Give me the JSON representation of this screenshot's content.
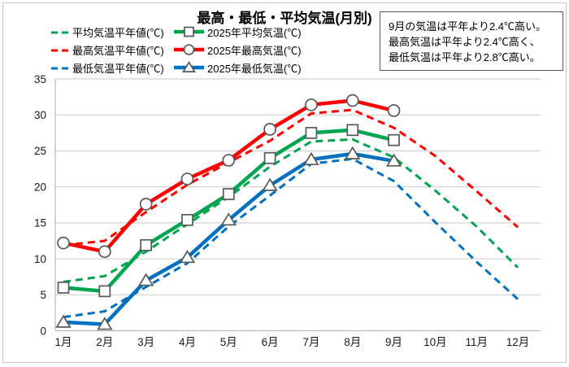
{
  "title": "最高・最低・平均気温(月別)",
  "annotation": {
    "line1": "9月の気温は平年より2.4℃高い。",
    "line2": "最高気温は平年より2.4℃高く、",
    "line3": "最低気温は平年より2.8℃高い。"
  },
  "colors": {
    "max_red": "#ff0000",
    "avg_green": "#00a550",
    "min_blue": "#0070c0",
    "marker_outline": "#595959",
    "gridline": "#c9c9c9",
    "axis_line": "#ababab",
    "frame_border": "#c6c6c6",
    "label_text": "#1a1a1a"
  },
  "chart_data": {
    "type": "line",
    "title": "最高・最低・平均気温(月別)",
    "xlabel": "",
    "ylabel": "",
    "ylim": [
      0,
      35
    ],
    "ytick_labels": [
      "0",
      "5",
      "10",
      "15",
      "20",
      "25",
      "30",
      "35"
    ],
    "grid": true,
    "legend_position": "top-left, 2 columns",
    "categories": [
      "1月",
      "2月",
      "3月",
      "4月",
      "5月",
      "6月",
      "7月",
      "8月",
      "9月",
      "10月",
      "11月",
      "12月"
    ],
    "series": [
      {
        "name": "平均気温平年値(℃)",
        "color": "#00a550",
        "style": "dashed",
        "marker": "none",
        "values": [
          6.8,
          7.6,
          11.0,
          14.8,
          18.6,
          22.8,
          26.3,
          26.6,
          24.1,
          19.5,
          14.5,
          8.8
        ]
      },
      {
        "name": "2025年平均気温(℃)",
        "color": "#00a550",
        "style": "solid",
        "marker": "square",
        "values": [
          6.0,
          5.5,
          11.9,
          15.4,
          19.0,
          24.0,
          27.5,
          27.9,
          26.5,
          null,
          null,
          null
        ]
      },
      {
        "name": "最高気温平年値(℃)",
        "color": "#ff0000",
        "style": "dashed",
        "marker": "none",
        "values": [
          11.9,
          12.5,
          16.5,
          20.3,
          23.4,
          26.4,
          30.2,
          30.7,
          28.2,
          24.3,
          19.4,
          14.4
        ]
      },
      {
        "name": "2025年最高気温(℃)",
        "color": "#ff0000",
        "style": "solid",
        "marker": "circle",
        "values": [
          12.2,
          11.0,
          17.6,
          21.1,
          23.7,
          28.0,
          31.4,
          32.0,
          30.6,
          null,
          null,
          null
        ]
      },
      {
        "name": "最低気温平年値(℃)",
        "color": "#0070c0",
        "style": "dashed",
        "marker": "none",
        "values": [
          1.9,
          2.7,
          6.1,
          9.4,
          14.5,
          18.8,
          23.2,
          23.9,
          20.8,
          15.1,
          9.6,
          4.4
        ]
      },
      {
        "name": "2025年最低気温(℃)",
        "color": "#0070c0",
        "style": "solid",
        "marker": "triangle",
        "values": [
          1.2,
          0.9,
          7.0,
          10.2,
          15.4,
          20.2,
          23.8,
          24.6,
          23.6,
          null,
          null,
          null
        ]
      }
    ]
  }
}
